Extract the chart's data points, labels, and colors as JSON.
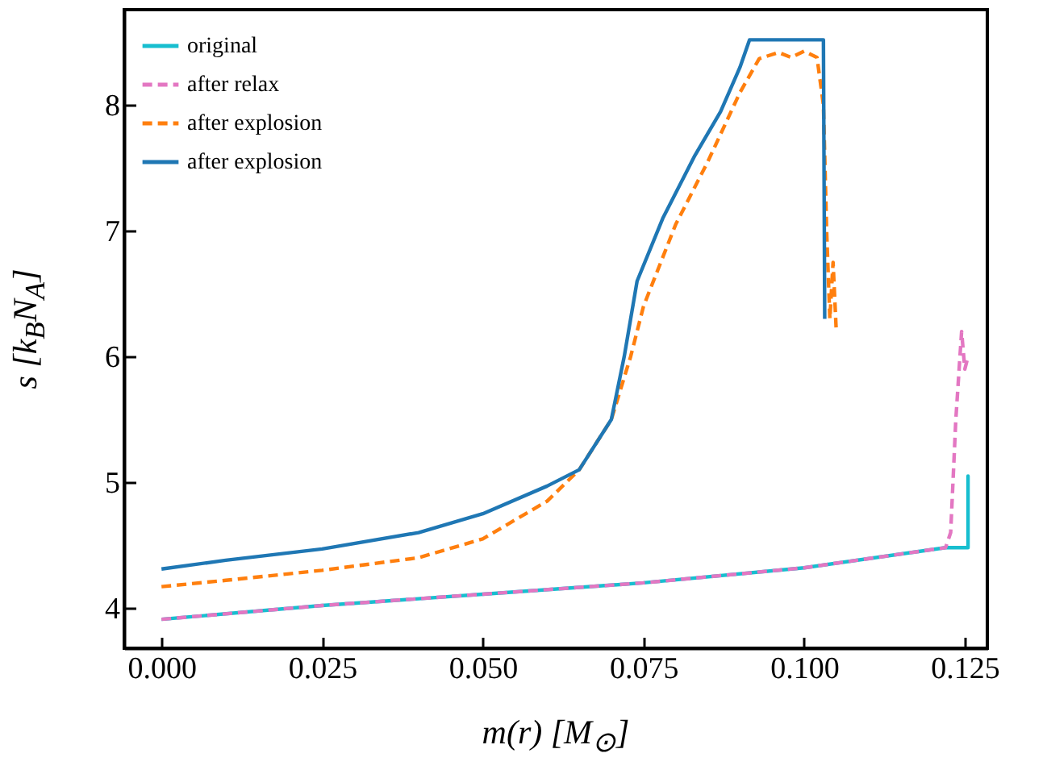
{
  "chart_data": {
    "type": "line",
    "xlabel": "m(r) [M$_{⊙}$]",
    "ylabel": "s [k$_{B}$N$_{A}$]",
    "xlim": [
      -0.0058,
      0.1285
    ],
    "ylim": [
      3.68,
      8.76
    ],
    "xticks": [
      {
        "value": 0,
        "label": "0.000"
      },
      {
        "value": 0.025,
        "label": "0.025"
      },
      {
        "value": 0.05,
        "label": "0.050"
      },
      {
        "value": 0.075,
        "label": "0.075"
      },
      {
        "value": 0.1,
        "label": "0.100"
      },
      {
        "value": 0.125,
        "label": "0.125"
      }
    ],
    "yticks": [
      4,
      5,
      6,
      7,
      8
    ],
    "grid": false,
    "legend": "top left",
    "series": [
      {
        "name": "original",
        "color": "#17becf",
        "line_style": "solid",
        "x": [
          0,
          0.025,
          0.05,
          0.075,
          0.1,
          0.122,
          0.1255,
          0.1255,
          0.1255
        ],
        "values": [
          3.91,
          4.02,
          4.11,
          4.2,
          4.32,
          4.48,
          4.48,
          5.05,
          4.48
        ]
      },
      {
        "name": "after relax",
        "color": "#e377c2",
        "line_style": "dashed",
        "x": [
          0,
          0.025,
          0.05,
          0.075,
          0.1,
          0.122,
          0.1228,
          0.1236,
          0.1245,
          0.125,
          0.1255
        ],
        "values": [
          3.91,
          4.02,
          4.11,
          4.2,
          4.32,
          4.48,
          4.6,
          5.5,
          6.2,
          5.9,
          6.0
        ]
      },
      {
        "name": "after explosion",
        "color": "#ff7f0e",
        "line_style": "dashed",
        "x": [
          0,
          0.01,
          0.025,
          0.04,
          0.05,
          0.06,
          0.065,
          0.07,
          0.073,
          0.075,
          0.08,
          0.085,
          0.09,
          0.093,
          0.096,
          0.098,
          0.1,
          0.102,
          0.103,
          0.1035,
          0.104,
          0.1045,
          0.105
        ],
        "values": [
          4.17,
          4.22,
          4.3,
          4.4,
          4.55,
          4.85,
          5.1,
          5.5,
          6.0,
          6.4,
          7.05,
          7.55,
          8.1,
          8.37,
          8.42,
          8.38,
          8.43,
          8.38,
          8.0,
          7.0,
          6.3,
          6.75,
          6.2
        ]
      },
      {
        "name": "after explosion",
        "color": "#1f77b4",
        "line_style": "solid",
        "x": [
          0,
          0.01,
          0.025,
          0.04,
          0.05,
          0.06,
          0.065,
          0.07,
          0.072,
          0.074,
          0.078,
          0.083,
          0.087,
          0.09,
          0.0915,
          0.103,
          0.1032
        ],
        "values": [
          4.31,
          4.38,
          4.47,
          4.6,
          4.75,
          4.97,
          5.1,
          5.5,
          6.0,
          6.6,
          7.1,
          7.6,
          7.95,
          8.3,
          8.52,
          8.52,
          6.3
        ]
      }
    ]
  }
}
